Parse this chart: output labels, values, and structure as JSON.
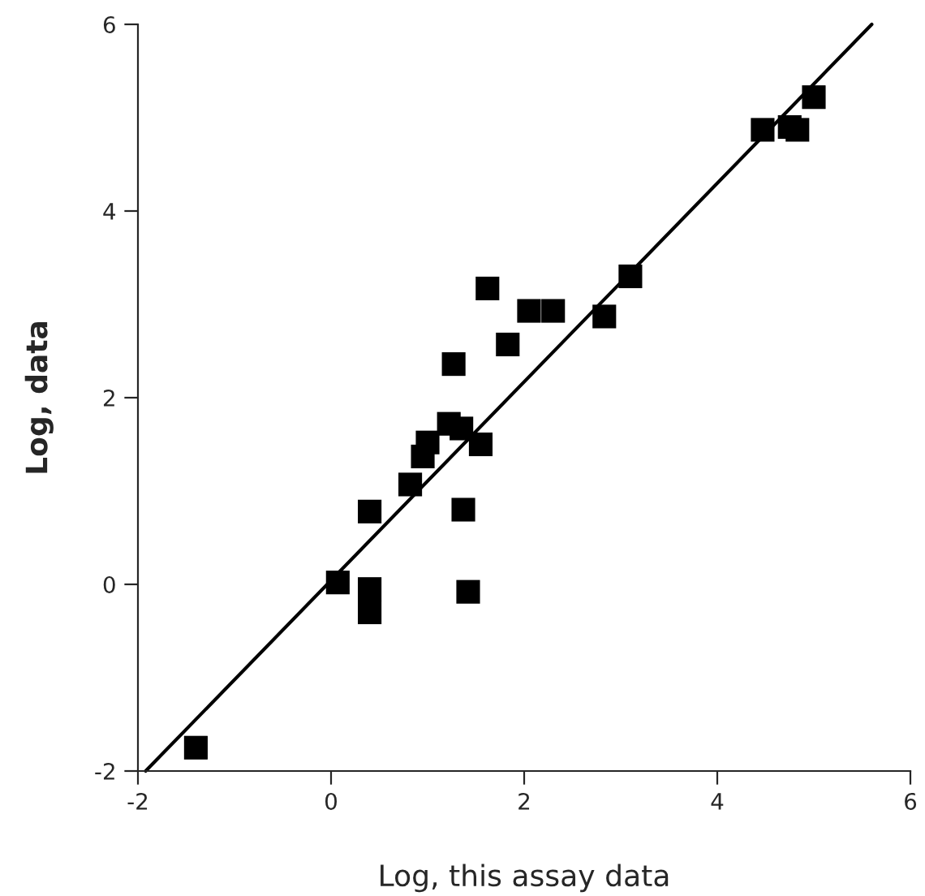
{
  "chart_data": {
    "type": "scatter",
    "xlabel": "Log, this assay data",
    "ylabel": "Log, data",
    "xlim": [
      -2,
      6
    ],
    "ylim": [
      -2,
      6
    ],
    "xticks": [
      -2,
      0,
      2,
      4,
      6
    ],
    "yticks": [
      -2,
      0,
      2,
      4,
      6
    ],
    "grid": false,
    "series": [
      {
        "marker": "square",
        "color": "#000000",
        "x": [
          -1.4,
          0.07,
          0.4,
          0.4,
          0.4,
          0.82,
          0.95,
          1.0,
          1.22,
          1.35,
          1.27,
          1.37,
          1.42,
          1.55,
          1.62,
          1.83,
          2.05,
          2.3,
          2.83,
          3.1,
          4.47,
          4.75,
          4.83,
          5.0
        ],
        "values": [
          -1.75,
          0.02,
          0.78,
          -0.05,
          -0.3,
          1.07,
          1.37,
          1.52,
          1.72,
          1.67,
          2.36,
          0.8,
          -0.08,
          1.5,
          3.17,
          2.57,
          2.93,
          2.93,
          2.87,
          3.3,
          4.87,
          4.9,
          4.87,
          5.22
        ]
      },
      {
        "type": "line",
        "color": "#000000",
        "x": [
          -1.92,
          5.6
        ],
        "values": [
          -2,
          6
        ],
        "line_style": "solid"
      }
    ]
  }
}
